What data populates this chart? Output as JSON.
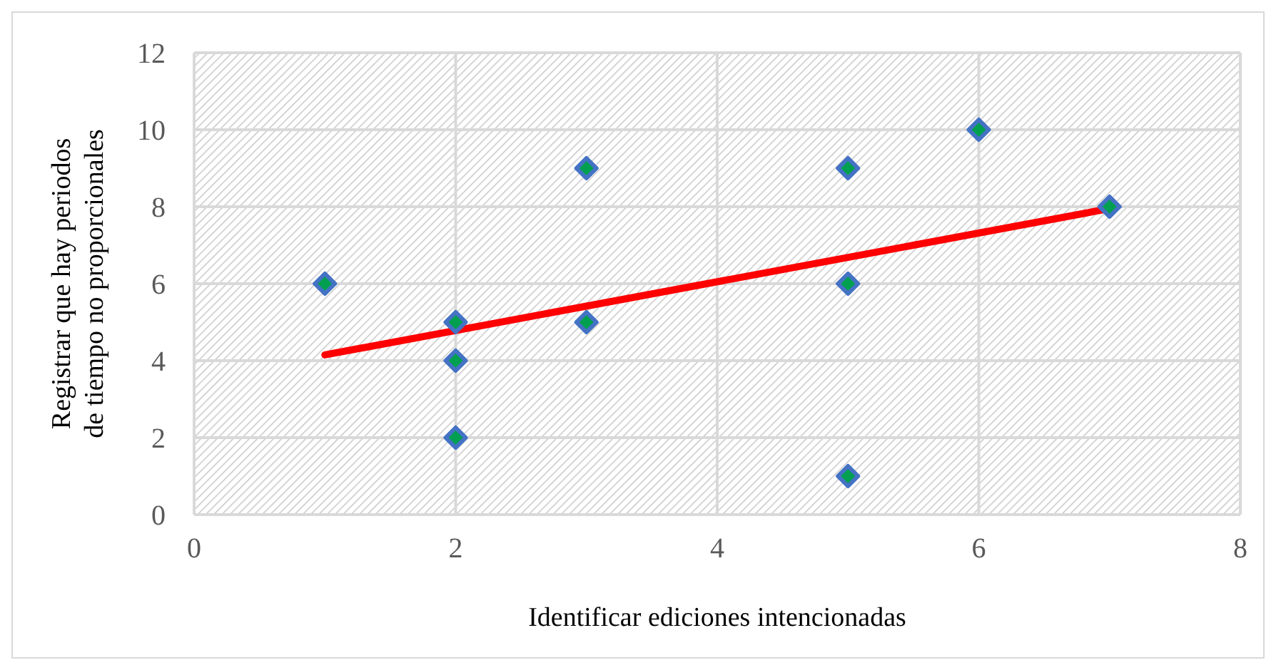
{
  "chart_data": {
    "type": "scatter",
    "xlabel": "Identificar ediciones intencionadas",
    "ylabel": "Registrar que hay periodos de tiempo no proporcionales",
    "xlim": [
      0,
      8
    ],
    "xticks": [
      0,
      2,
      4,
      6,
      8
    ],
    "ylim": [
      0,
      12
    ],
    "yticks": [
      0,
      2,
      4,
      6,
      8,
      10,
      12
    ],
    "grid": true,
    "marker": "diamond",
    "legend": false,
    "series": [
      {
        "type": "scatter",
        "color": "#4472c4",
        "x": [
          1,
          2,
          2,
          2,
          3,
          3,
          5,
          5,
          5,
          6,
          7
        ],
        "values": [
          6,
          5,
          4,
          2,
          9,
          5,
          9,
          6,
          1,
          10,
          8
        ]
      },
      {
        "type": "line",
        "color": "#ff0000",
        "line_style": "solid",
        "marker": "none",
        "x": [
          1,
          7
        ],
        "values": [
          4.15,
          7.95
        ]
      }
    ]
  }
}
